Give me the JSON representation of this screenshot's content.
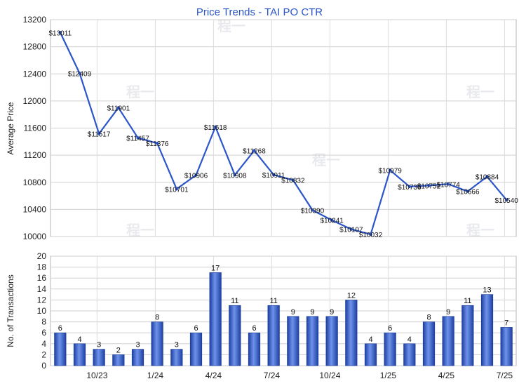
{
  "chart_data": [
    {
      "type": "line",
      "title": "Price Trends - TAI PO CTR",
      "xlabel": "",
      "ylabel": "Average Price",
      "ylim": [
        10000,
        13200
      ],
      "yticks": [
        "10000",
        "10400",
        "10800",
        "11200",
        "11600",
        "12000",
        "12400",
        "12800",
        "13200"
      ],
      "grid": true,
      "color": "#2b55c9",
      "series": [
        {
          "values": [
            13011,
            12409,
            11517,
            11901,
            11457,
            11376,
            10701,
            10906,
            11618,
            10908,
            11268,
            10911,
            10832,
            10390,
            10241,
            10107,
            10032,
            10979,
            10736,
            10752,
            10774,
            10666,
            10884,
            10540
          ],
          "labels": [
            "$13011",
            "$12409",
            "$11517",
            "$11901",
            "$11457",
            "$11376",
            "$10701",
            "$10906",
            "$11618",
            "$10908",
            "$11268",
            "$10911",
            "$10832",
            "$10390",
            "$10241",
            "$10107",
            "$10032",
            "$10979",
            "$10736",
            "$10752",
            "$10774",
            "$10666",
            "$10884",
            "$10540"
          ]
        }
      ]
    },
    {
      "type": "bar",
      "title": "",
      "xlabel": "",
      "ylabel": "No. of Transactions",
      "ylim": [
        0,
        20
      ],
      "yticks": [
        "0",
        "2",
        "4",
        "6",
        "8",
        "10",
        "12",
        "14",
        "16",
        "18",
        "20"
      ],
      "grid": true,
      "color": "#3a66cc",
      "values": [
        6,
        4,
        3,
        2,
        3,
        8,
        3,
        6,
        17,
        11,
        6,
        11,
        9,
        9,
        9,
        12,
        4,
        6,
        4,
        8,
        9,
        11,
        13,
        7
      ],
      "value_labels": [
        "6",
        "4",
        "3",
        "2",
        "3",
        "8",
        "3",
        "6",
        "17",
        "11",
        "6",
        "11",
        "9",
        "9",
        "9",
        "12",
        "4",
        "6",
        "4",
        "8",
        "9",
        "11",
        "13",
        "7"
      ],
      "x_tick_labels": [
        {
          "index": 2,
          "label": "10/23"
        },
        {
          "index": 5,
          "label": "1/24"
        },
        {
          "index": 8,
          "label": "4/24"
        },
        {
          "index": 11,
          "label": "7/24"
        },
        {
          "index": 14,
          "label": "10/24"
        },
        {
          "index": 17,
          "label": "1/25"
        },
        {
          "index": 20,
          "label": "4/25"
        },
        {
          "index": 23,
          "label": "7/25"
        }
      ]
    }
  ],
  "watermark": "程一"
}
